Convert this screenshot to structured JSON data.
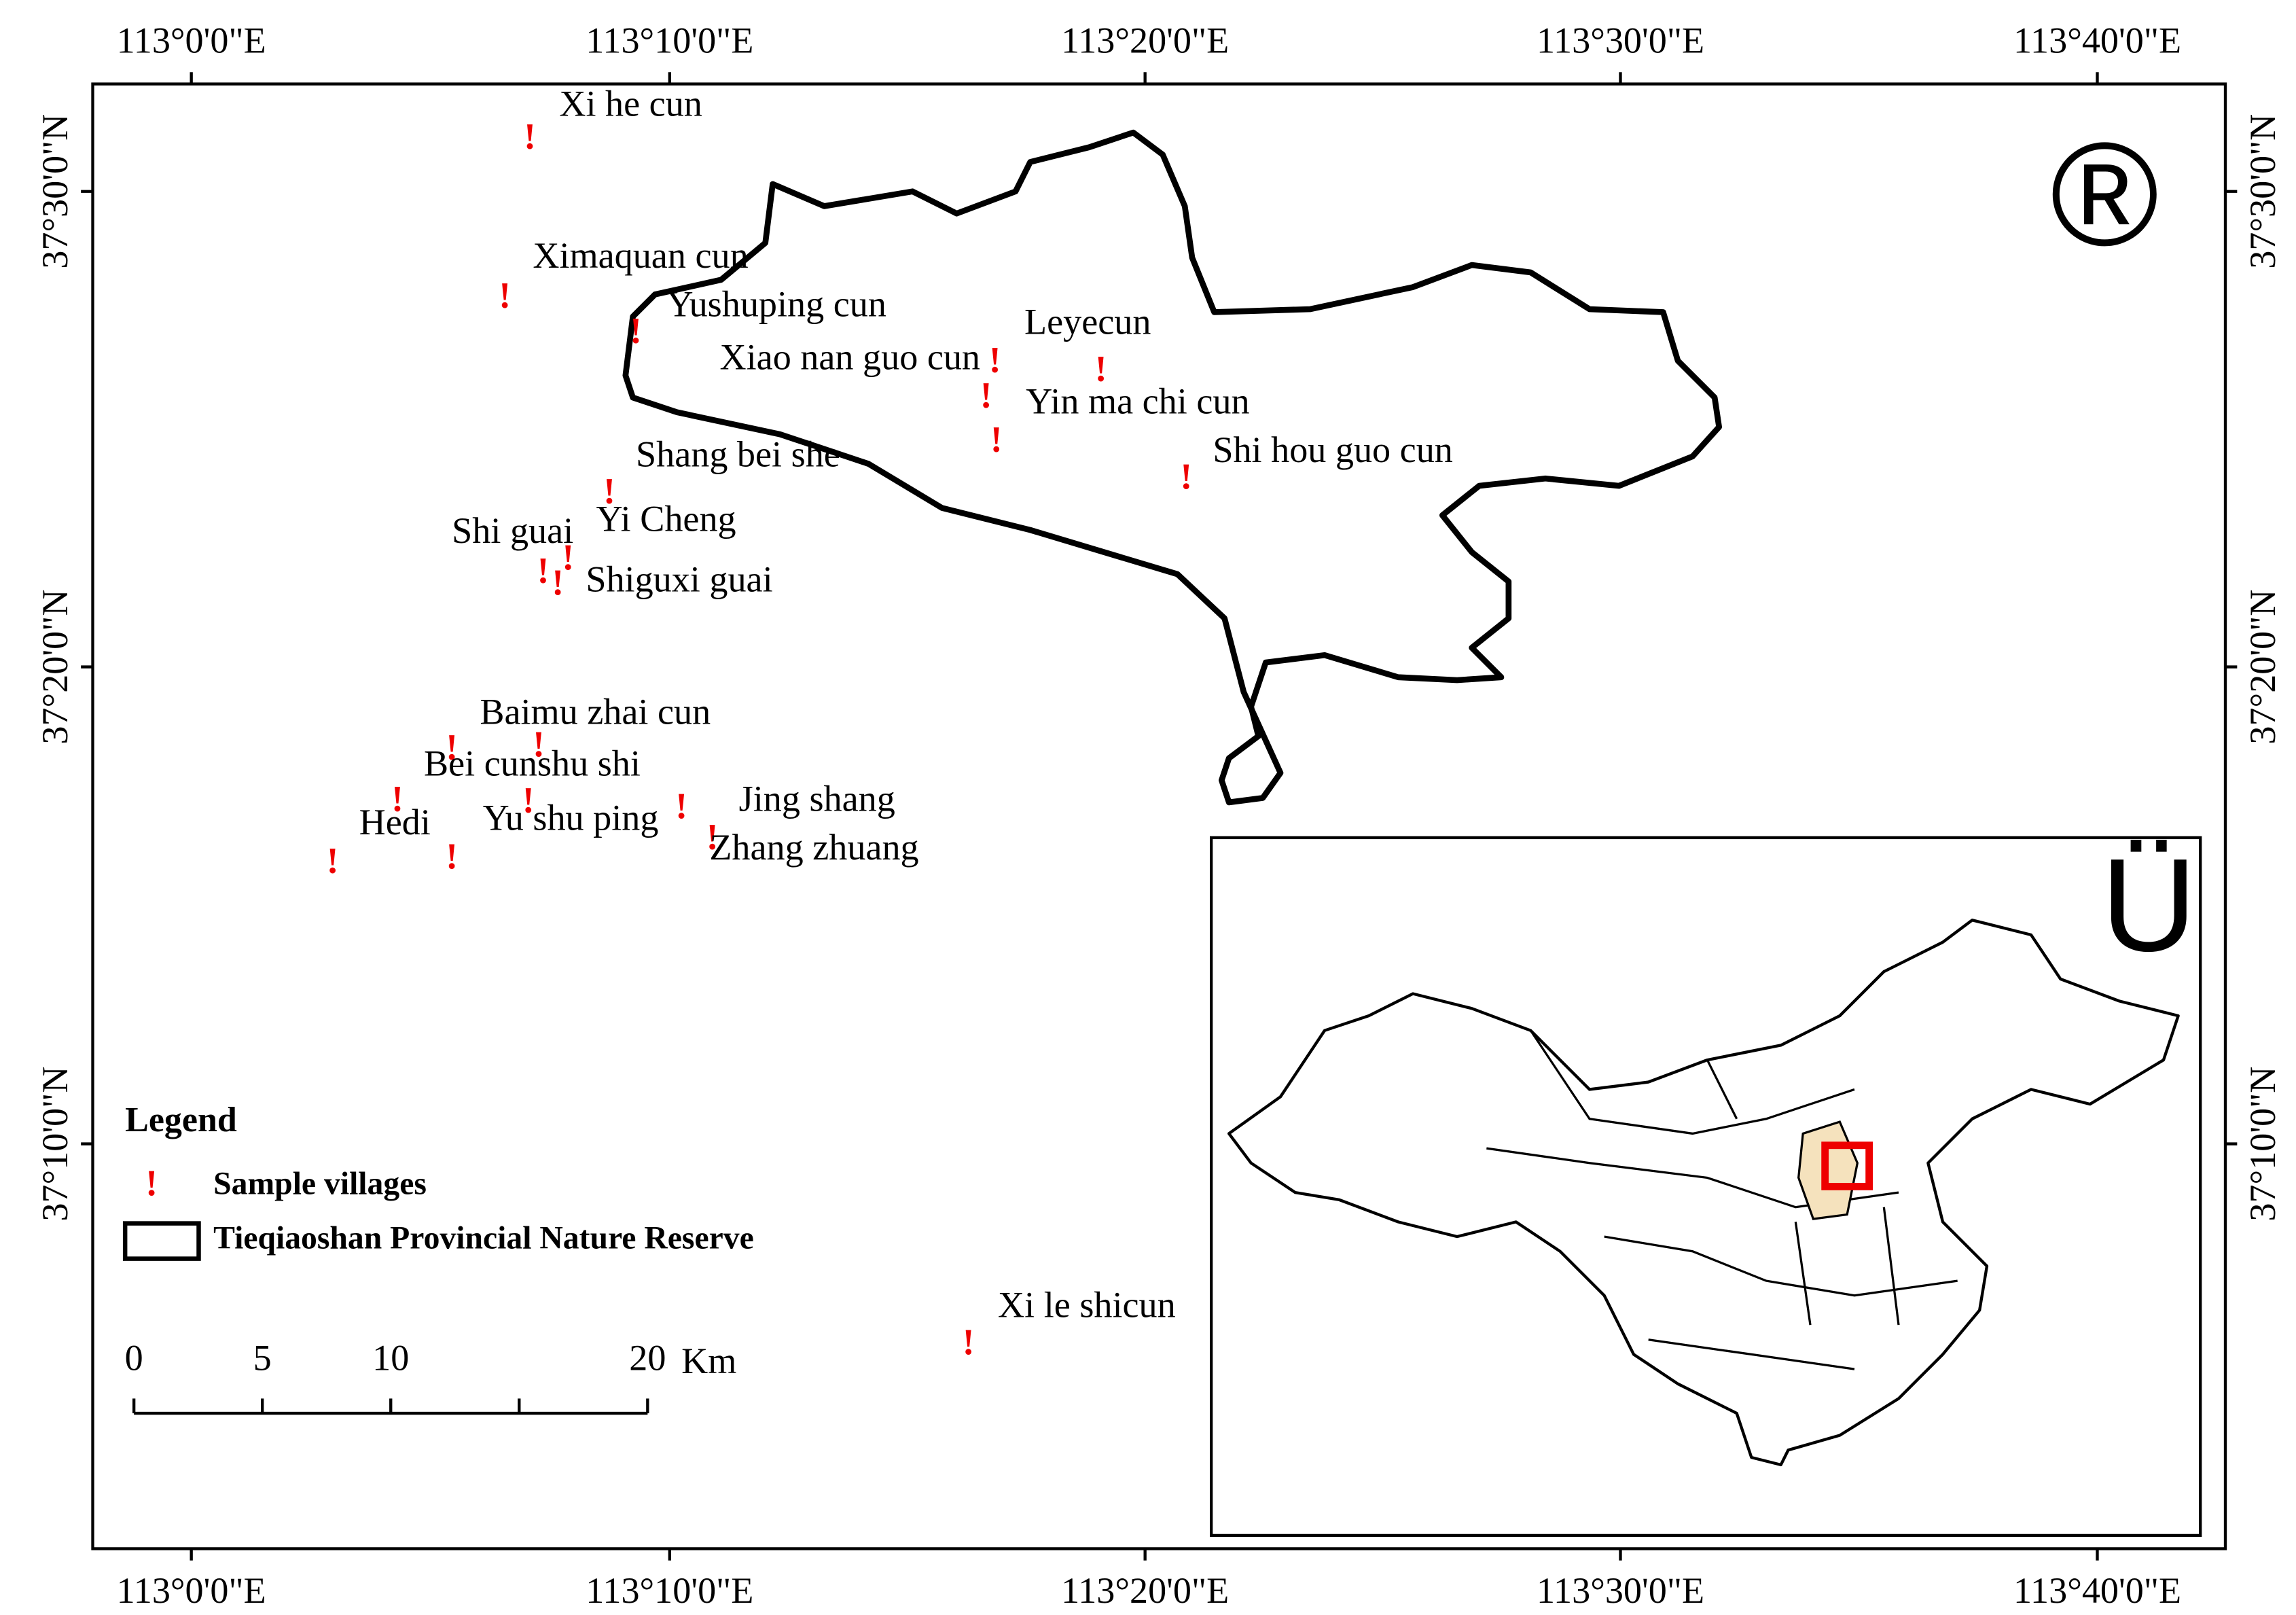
{
  "top_axis_labels": [
    "113°0'0\"E",
    "113°10'0\"E",
    "113°20'0\"E",
    "113°30'0\"E",
    "113°40'0\"E"
  ],
  "bottom_axis_labels": [
    "113°0'0\"E",
    "113°10'0\"E",
    "113°20'0\"E",
    "113°30'0\"E",
    "113°40'0\"E"
  ],
  "left_axis_labels": [
    "37°30'0\"N",
    "37°20'0\"N",
    "37°10'0\"N"
  ],
  "right_axis_labels": [
    "37°30'0\"N",
    "37°20'0\"N",
    "37°10'0\"N"
  ],
  "north_arrow": "®",
  "inset_north_arrow": "Ü",
  "villages": [
    "Xi he cun",
    "Ximaquan cun",
    "Yushuping cun",
    "Leyecun",
    "Xiao nan guo cun",
    "Yin ma chi cun",
    "Shang bei she",
    "Shi hou guo cun",
    "Yi Cheng",
    "Shi guai",
    "Shiguxi guai",
    "Baimu zhai cun",
    "Bei cunshu shi",
    "Jing shang",
    "Hedi",
    "Yu shu ping",
    "Zhang zhuang",
    "Xi le shicun"
  ],
  "legend": {
    "title": "Legend",
    "items": [
      "Sample villages",
      "Tieqiaoshan Provincial Nature Reserve"
    ]
  },
  "scale_bar": {
    "ticks": [
      0,
      5,
      10,
      20
    ],
    "unit": "Km"
  }
}
